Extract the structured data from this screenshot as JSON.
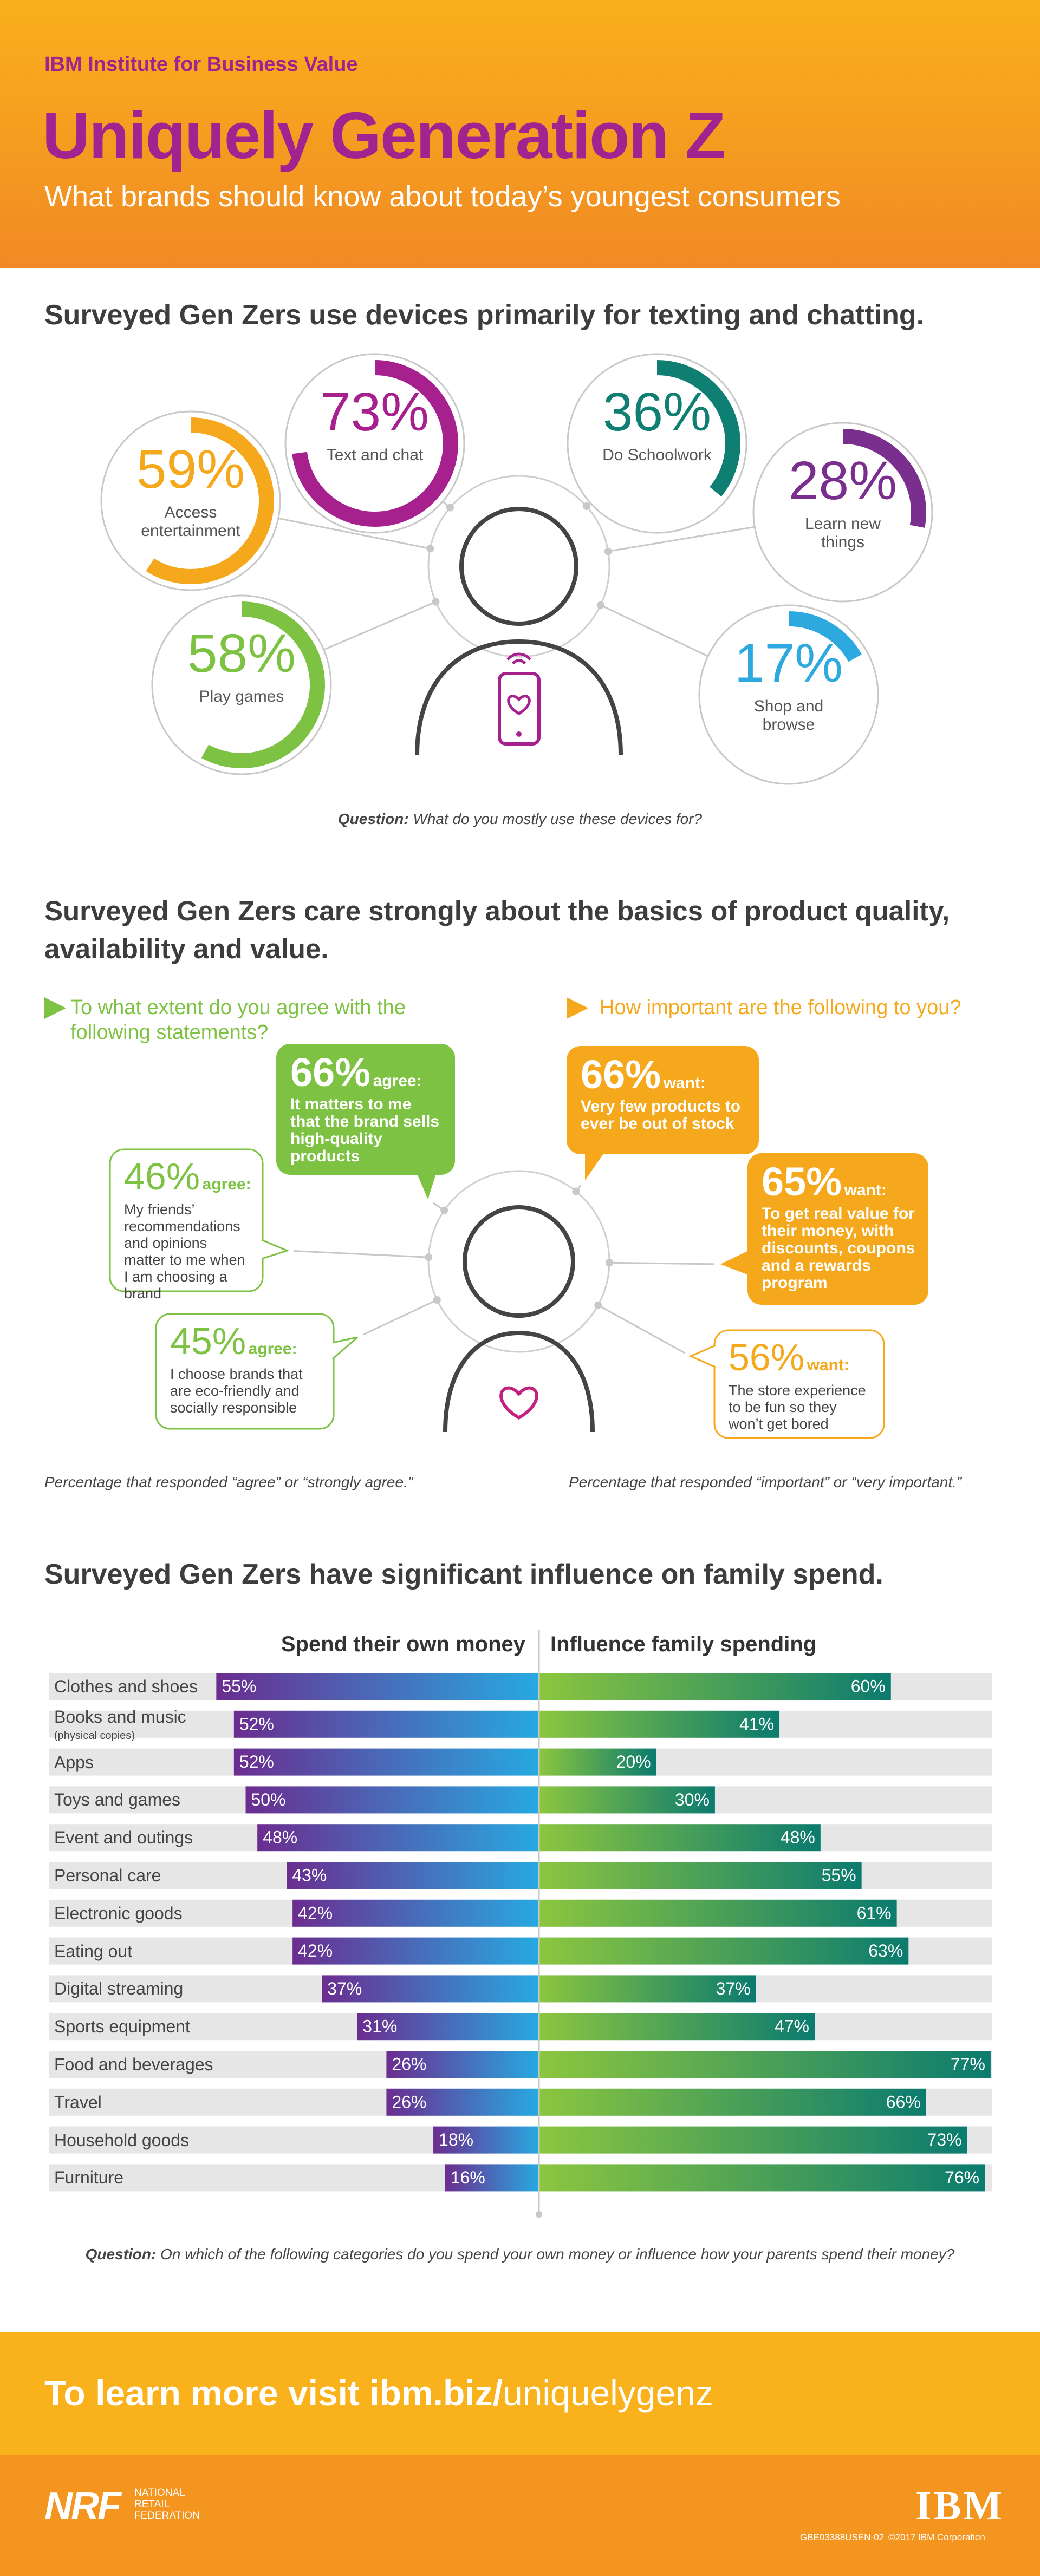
{
  "header": {
    "org": "IBM Institute for Business Value",
    "title": "Uniquely Generation Z",
    "subtitle": "What brands should know about today’s youngest consumers"
  },
  "devices": {
    "heading": "Surveyed Gen Zers use devices primarily for texting and chatting.",
    "question_label": "Question:",
    "question": "What do you mostly use these devices for?"
  },
  "quality": {
    "heading": "Surveyed Gen Zers care strongly about the basics of product quality, availability and value.",
    "left_prompt": "To what extent do you agree with the following statements?",
    "right_prompt": "How important are the following to you?",
    "left_note": "Percentage that responded “agree” or “strongly agree.”",
    "right_note": "Percentage that responded “important” or “very important.”"
  },
  "spend": {
    "heading": "Surveyed Gen Zers have significant influence on family spend.",
    "question_label": "Question:",
    "question": "On which of the following categories do you spend your own money or influence how your parents spend their money?"
  },
  "footer": {
    "cta": "To learn more visit ibm.biz/",
    "link": "uniquelygenz",
    "nrf": "NRF",
    "nrf_name": "NATIONAL RETAIL FEDERATION",
    "ibm": "IBM",
    "code": "GBE03388USEN-02",
    "copyright": "©2017 IBM Corporation"
  },
  "chart_data": [
    {
      "type": "ring",
      "categories": [
        "Text and chat",
        "Do Schoolwork",
        "Access entertainment",
        "Learn new things",
        "Play games",
        "Shop and browse"
      ],
      "values": [
        73,
        36,
        59,
        28,
        58,
        17
      ],
      "value_labels": [
        "73%",
        "36%",
        "59%",
        "28%",
        "58%",
        "17%"
      ],
      "colors": [
        "#a6218e",
        "#0f7e73",
        "#f5a81c",
        "#7a2f8f",
        "#7dc242",
        "#2ea9df"
      ],
      "ylim": [
        0,
        100
      ]
    },
    {
      "type": "callout",
      "categories": [
        "It matters to me that the brand sells high-quality products",
        "My friends’ recommendations and opinions matter to me when I am choosing a brand",
        "I choose brands that are eco-friendly and socially responsible",
        "Very few products to ever be out of stock",
        "To get real value for their money, with discounts, coupons and a rewards program",
        "The store experience to be fun so they won’t get bored"
      ],
      "values": [
        66,
        46,
        45,
        66,
        65,
        56
      ],
      "value_labels": [
        "66%",
        "46%",
        "45%",
        "66%",
        "65%",
        "56%"
      ],
      "qualifiers": [
        "agree:",
        "agree:",
        "agree:",
        "want:",
        "want:",
        "want:"
      ],
      "styles": [
        "filled",
        "outline",
        "outline",
        "filled",
        "filled",
        "outline"
      ],
      "colors": [
        "#7dc242",
        "#7dc242",
        "#7dc242",
        "#f5a81c",
        "#f5a81c",
        "#f5a81c"
      ]
    },
    {
      "type": "diverging-bar",
      "categories": [
        "Clothes and shoes",
        "Books and music (physical copies)",
        "Apps",
        "Toys and games",
        "Event and outings",
        "Personal care",
        "Electronic goods",
        "Eating out",
        "Digital streaming",
        "Sports equipment",
        "Food and beverages",
        "Travel",
        "Household goods",
        "Furniture"
      ],
      "series": [
        {
          "name": "Spend their own money",
          "color": [
            "#6b2d90",
            "#27a9e1"
          ],
          "values": [
            55,
            52,
            52,
            50,
            48,
            43,
            42,
            42,
            37,
            31,
            26,
            26,
            18,
            16
          ],
          "value_labels": [
            "55%",
            "52%",
            "52%",
            "50%",
            "48%",
            "43%",
            "42%",
            "42%",
            "37%",
            "31%",
            "26%",
            "26%",
            "18%",
            "16%"
          ]
        },
        {
          "name": "Influence family spending",
          "color": [
            "#8cc63f",
            "#0b7b6f"
          ],
          "values": [
            60,
            41,
            20,
            30,
            48,
            55,
            61,
            63,
            37,
            47,
            77,
            66,
            73,
            76
          ],
          "value_labels": [
            "60%",
            "41%",
            "20%",
            "30%",
            "48%",
            "55%",
            "61%",
            "63%",
            "37%",
            "47%",
            "77%",
            "66%",
            "73%",
            "76%"
          ]
        }
      ],
      "xlim": [
        0,
        100
      ]
    }
  ]
}
